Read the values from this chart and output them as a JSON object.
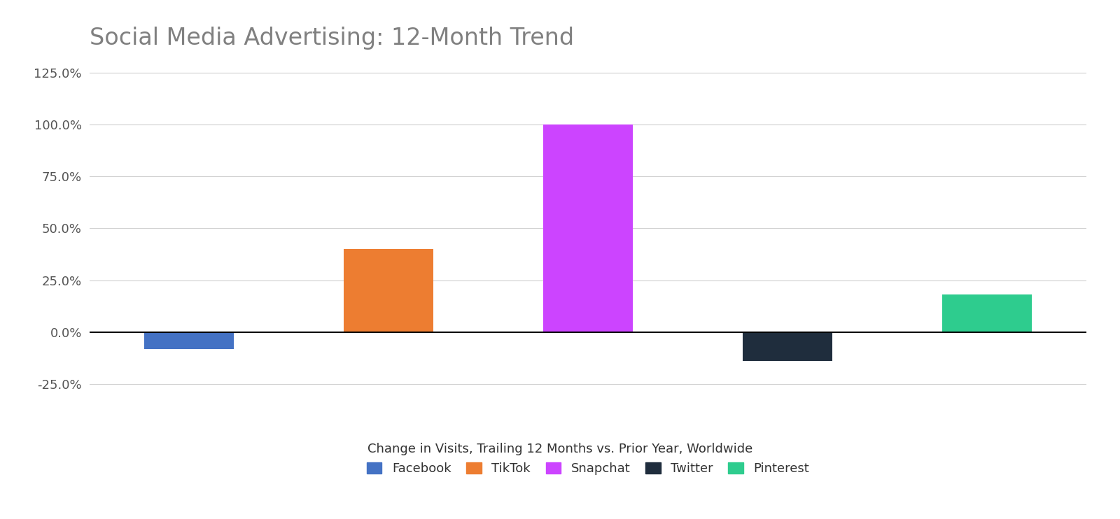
{
  "title": "Social Media Advertising: 12-Month Trend",
  "xlabel": "Change in Visits, Trailing 12 Months vs. Prior Year, Worldwide",
  "categories": [
    "Facebook",
    "TikTok",
    "Snapchat",
    "Twitter",
    "Pinterest"
  ],
  "values": [
    -0.08,
    0.4,
    1.0,
    -0.14,
    0.18
  ],
  "bar_colors": [
    "#4472C4",
    "#ED7D31",
    "#CC44FF",
    "#1F2D3D",
    "#2ECC8E"
  ],
  "ylim": [
    -0.3,
    1.3
  ],
  "yticks": [
    -0.25,
    0.0,
    0.25,
    0.5,
    0.75,
    1.0,
    1.25
  ],
  "background_color": "#ffffff",
  "title_color": "#808080",
  "title_fontsize": 24,
  "xlabel_fontsize": 13,
  "tick_fontsize": 13,
  "legend_fontsize": 13,
  "grid_color": "#d0d0d0",
  "tick_color": "#555555"
}
